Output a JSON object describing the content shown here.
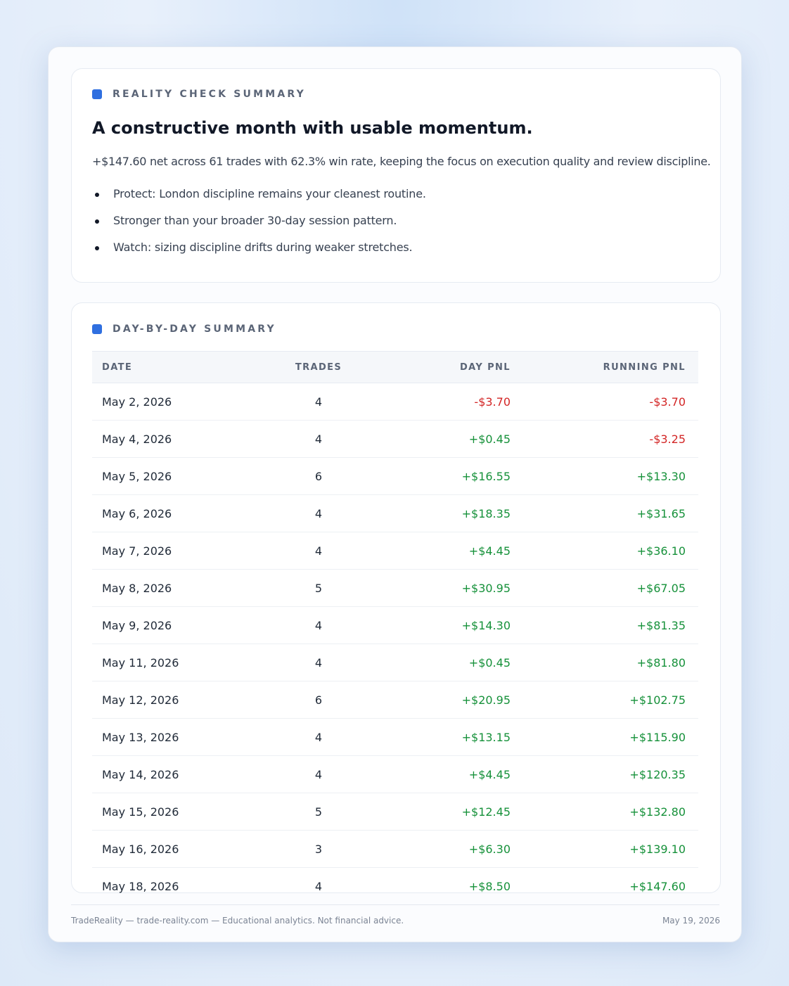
{
  "summary": {
    "label": "REALITY CHECK SUMMARY",
    "title": "A constructive month with usable momentum.",
    "text": "+$147.60 net across 61 trades with 62.3% win rate, keeping the focus on execution quality and review discipline.",
    "bullets": [
      "Protect: London discipline remains your cleanest routine.",
      "Stronger than your broader 30-day session pattern.",
      "Watch: sizing discipline drifts during weaker stretches."
    ]
  },
  "day_by_day": {
    "label": "DAY-BY-DAY SUMMARY",
    "columns": [
      "DATE",
      "TRADES",
      "DAY PNL",
      "RUNNING PNL"
    ],
    "rows": [
      [
        "May 2, 2026",
        "4",
        "-$3.70",
        "-$3.70"
      ],
      [
        "May 4, 2026",
        "4",
        "+$0.45",
        "-$3.25"
      ],
      [
        "May 5, 2026",
        "6",
        "+$16.55",
        "+$13.30"
      ],
      [
        "May 6, 2026",
        "4",
        "+$18.35",
        "+$31.65"
      ],
      [
        "May 7, 2026",
        "4",
        "+$4.45",
        "+$36.10"
      ],
      [
        "May 8, 2026",
        "5",
        "+$30.95",
        "+$67.05"
      ],
      [
        "May 9, 2026",
        "4",
        "+$14.30",
        "+$81.35"
      ],
      [
        "May 11, 2026",
        "4",
        "+$0.45",
        "+$81.80"
      ],
      [
        "May 12, 2026",
        "6",
        "+$20.95",
        "+$102.75"
      ],
      [
        "May 13, 2026",
        "4",
        "+$13.15",
        "+$115.90"
      ],
      [
        "May 14, 2026",
        "4",
        "+$4.45",
        "+$120.35"
      ],
      [
        "May 15, 2026",
        "5",
        "+$12.45",
        "+$132.80"
      ],
      [
        "May 16, 2026",
        "3",
        "+$6.30",
        "+$139.10"
      ],
      [
        "May 18, 2026",
        "4",
        "+$8.50",
        "+$147.60"
      ]
    ]
  },
  "footer": {
    "left": "TradeReality — trade-reality.com — Educational analytics. Not financial advice.",
    "right": "May 19, 2026"
  }
}
